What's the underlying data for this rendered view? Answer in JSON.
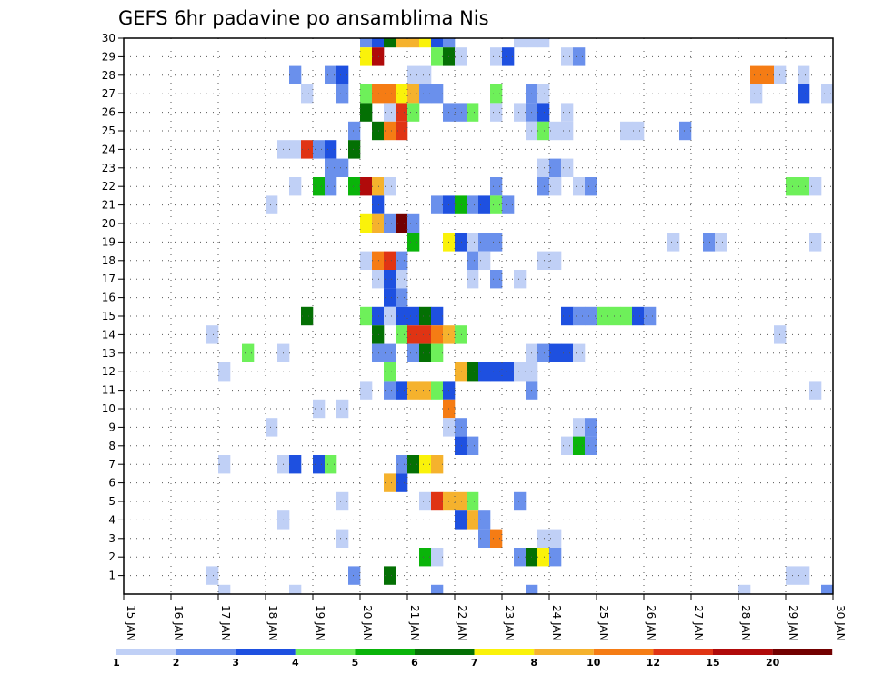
{
  "chart_data": {
    "type": "heatmap",
    "title": "GEFS 6hr padavine po ansamblima Nis",
    "xlabel": "",
    "ylabel": "",
    "x_unit": "days since 15 JAN 00z",
    "xlim": [
      0,
      15
    ],
    "ylim": [
      0,
      30
    ],
    "x_tick_labels": [
      "15 JAN",
      "16 JAN",
      "17 JAN",
      "18 JAN",
      "19 JAN",
      "20 JAN",
      "21 JAN",
      "22 JAN",
      "23 JAN",
      "24 JAN",
      "25 JAN",
      "26 JAN",
      "27 JAN",
      "28 JAN",
      "29 JAN",
      "30 JAN"
    ],
    "y_tick_labels": [
      "1",
      "2",
      "3",
      "4",
      "5",
      "6",
      "7",
      "8",
      "9",
      "10",
      "11",
      "12",
      "13",
      "14",
      "15",
      "16",
      "17",
      "18",
      "19",
      "20",
      "21",
      "22",
      "23",
      "24",
      "25",
      "26",
      "27",
      "28",
      "29",
      "30"
    ],
    "grid": true,
    "legend_position": "bottom",
    "levels": [
      1,
      2,
      3,
      4,
      5,
      6,
      7,
      8,
      10,
      12,
      15,
      20
    ],
    "colors": [
      "#c0d0f6",
      "#6a90ec",
      "#1e50e0",
      "#6ef05a",
      "#0ab40a",
      "#047004",
      "#faf20a",
      "#f5b22d",
      "#f57c14",
      "#e03414",
      "#b00a0a",
      "#720000"
    ],
    "members": [
      {
        "member": 30,
        "cells": [
          [
            5,
            2
          ],
          [
            5.25,
            3
          ],
          [
            5.5,
            6
          ],
          [
            5.75,
            8
          ],
          [
            6,
            8
          ],
          [
            6.25,
            7
          ],
          [
            6.5,
            3
          ],
          [
            6.75,
            2
          ],
          [
            8.25,
            1
          ],
          [
            8.5,
            1
          ],
          [
            8.75,
            1
          ]
        ]
      },
      {
        "member": 29,
        "cells": [
          [
            5,
            7
          ],
          [
            5.25,
            11
          ],
          [
            6.5,
            4
          ],
          [
            6.75,
            6
          ],
          [
            7,
            1
          ],
          [
            7.75,
            1
          ],
          [
            8,
            3
          ],
          [
            9.25,
            1
          ],
          [
            9.5,
            2
          ]
        ]
      },
      {
        "member": 28,
        "cells": [
          [
            3.5,
            2
          ],
          [
            4.25,
            2
          ],
          [
            4.5,
            3
          ],
          [
            6,
            1
          ],
          [
            6.25,
            1
          ],
          [
            13.25,
            9
          ],
          [
            13.5,
            9
          ],
          [
            13.75,
            1
          ],
          [
            14.25,
            1
          ]
        ]
      },
      {
        "member": 27,
        "cells": [
          [
            3.75,
            1
          ],
          [
            4.5,
            2
          ],
          [
            5,
            4
          ],
          [
            5.25,
            9
          ],
          [
            5.5,
            9
          ],
          [
            5.75,
            7
          ],
          [
            6,
            8
          ],
          [
            6.25,
            2
          ],
          [
            6.5,
            2
          ],
          [
            7.75,
            4
          ],
          [
            8.5,
            2
          ],
          [
            8.75,
            1
          ],
          [
            13.25,
            1
          ],
          [
            14.25,
            3
          ],
          [
            14.75,
            1
          ]
        ]
      },
      {
        "member": 26,
        "cells": [
          [
            5,
            6
          ],
          [
            5.5,
            1
          ],
          [
            5.75,
            10
          ],
          [
            6,
            4
          ],
          [
            6.75,
            2
          ],
          [
            7,
            2
          ],
          [
            7.25,
            4
          ],
          [
            7.75,
            1
          ],
          [
            8.25,
            1
          ],
          [
            8.5,
            2
          ],
          [
            8.75,
            3
          ],
          [
            9.25,
            1
          ]
        ]
      },
      {
        "member": 25,
        "cells": [
          [
            4.75,
            2
          ],
          [
            5.25,
            6
          ],
          [
            5.5,
            9
          ],
          [
            5.75,
            10
          ],
          [
            8.5,
            1
          ],
          [
            8.75,
            4
          ],
          [
            9,
            1
          ],
          [
            9.25,
            1
          ],
          [
            10.5,
            1
          ],
          [
            10.75,
            1
          ],
          [
            11.75,
            2
          ]
        ]
      },
      {
        "member": 24,
        "cells": [
          [
            3.25,
            1
          ],
          [
            3.5,
            1
          ],
          [
            3.75,
            10
          ],
          [
            4,
            2
          ],
          [
            4.25,
            3
          ],
          [
            4.75,
            6
          ]
        ]
      },
      {
        "member": 23,
        "cells": [
          [
            4.25,
            2
          ],
          [
            4.5,
            2
          ],
          [
            8.75,
            1
          ],
          [
            9,
            2
          ],
          [
            9.25,
            1
          ]
        ]
      },
      {
        "member": 22,
        "cells": [
          [
            3.5,
            1
          ],
          [
            4,
            5
          ],
          [
            4.25,
            2
          ],
          [
            4.75,
            5
          ],
          [
            5,
            11
          ],
          [
            5.25,
            8
          ],
          [
            5.5,
            1
          ],
          [
            7.75,
            2
          ],
          [
            8.75,
            2
          ],
          [
            9,
            1
          ],
          [
            9.5,
            1
          ],
          [
            9.75,
            2
          ],
          [
            14,
            4
          ],
          [
            14.25,
            4
          ],
          [
            14.5,
            1
          ]
        ]
      },
      {
        "member": 21,
        "cells": [
          [
            3,
            1
          ],
          [
            5.25,
            3
          ],
          [
            6.5,
            2
          ],
          [
            6.75,
            3
          ],
          [
            7,
            5
          ],
          [
            7.25,
            2
          ],
          [
            7.5,
            3
          ],
          [
            7.75,
            4
          ],
          [
            8,
            2
          ]
        ]
      },
      {
        "member": 20,
        "cells": [
          [
            5,
            7
          ],
          [
            5.25,
            8
          ],
          [
            5.5,
            2
          ],
          [
            5.75,
            12
          ],
          [
            6,
            2
          ]
        ]
      },
      {
        "member": 19,
        "cells": [
          [
            6,
            5
          ],
          [
            6.75,
            7
          ],
          [
            7,
            3
          ],
          [
            7.25,
            1
          ],
          [
            7.5,
            2
          ],
          [
            7.75,
            2
          ],
          [
            11.5,
            1
          ],
          [
            12.25,
            2
          ],
          [
            12.5,
            1
          ],
          [
            14.5,
            1
          ]
        ]
      },
      {
        "member": 18,
        "cells": [
          [
            5,
            1
          ],
          [
            5.25,
            9
          ],
          [
            5.5,
            10
          ],
          [
            5.75,
            2
          ],
          [
            7.25,
            2
          ],
          [
            7.5,
            1
          ],
          [
            8.75,
            1
          ],
          [
            9,
            1
          ]
        ]
      },
      {
        "member": 17,
        "cells": [
          [
            5.25,
            1
          ],
          [
            5.5,
            3
          ],
          [
            5.75,
            1
          ],
          [
            7.25,
            1
          ],
          [
            7.75,
            2
          ],
          [
            8.25,
            1
          ]
        ]
      },
      {
        "member": 16,
        "cells": [
          [
            5.5,
            3
          ],
          [
            5.75,
            2
          ]
        ]
      },
      {
        "member": 15,
        "cells": [
          [
            3.75,
            6
          ],
          [
            5,
            4
          ],
          [
            5.25,
            3
          ],
          [
            5.5,
            1
          ],
          [
            5.75,
            3
          ],
          [
            6,
            3
          ],
          [
            6.25,
            6
          ],
          [
            6.5,
            3
          ],
          [
            9.25,
            3
          ],
          [
            9.5,
            2
          ],
          [
            9.75,
            2
          ],
          [
            10,
            4
          ],
          [
            10.25,
            4
          ],
          [
            10.5,
            4
          ],
          [
            10.75,
            3
          ],
          [
            11,
            2
          ]
        ]
      },
      {
        "member": 14,
        "cells": [
          [
            1.75,
            1
          ],
          [
            5.25,
            6
          ],
          [
            5.75,
            4
          ],
          [
            6,
            10
          ],
          [
            6.25,
            10
          ],
          [
            6.5,
            9
          ],
          [
            6.75,
            8
          ],
          [
            7,
            4
          ],
          [
            13.75,
            1
          ]
        ]
      },
      {
        "member": 13,
        "cells": [
          [
            2.5,
            4
          ],
          [
            3.25,
            1
          ],
          [
            5.25,
            2
          ],
          [
            5.5,
            2
          ],
          [
            6,
            2
          ],
          [
            6.25,
            6
          ],
          [
            6.5,
            4
          ],
          [
            8.5,
            1
          ],
          [
            8.75,
            2
          ],
          [
            9,
            3
          ],
          [
            9.25,
            3
          ],
          [
            9.5,
            1
          ]
        ]
      },
      {
        "member": 12,
        "cells": [
          [
            2,
            1
          ],
          [
            5.5,
            4
          ],
          [
            7,
            8
          ],
          [
            7.25,
            6
          ],
          [
            7.5,
            3
          ],
          [
            7.75,
            3
          ],
          [
            8,
            3
          ],
          [
            8.25,
            1
          ],
          [
            8.5,
            1
          ]
        ]
      },
      {
        "member": 11,
        "cells": [
          [
            5,
            1
          ],
          [
            5.5,
            2
          ],
          [
            5.75,
            3
          ],
          [
            6,
            8
          ],
          [
            6.25,
            8
          ],
          [
            6.5,
            4
          ],
          [
            6.75,
            3
          ],
          [
            8.5,
            2
          ],
          [
            14.5,
            1
          ]
        ]
      },
      {
        "member": 10,
        "cells": [
          [
            4,
            1
          ],
          [
            4.5,
            1
          ],
          [
            6.75,
            9
          ]
        ]
      },
      {
        "member": 9,
        "cells": [
          [
            3,
            1
          ],
          [
            6.75,
            1
          ],
          [
            7,
            2
          ],
          [
            9.5,
            1
          ],
          [
            9.75,
            2
          ]
        ]
      },
      {
        "member": 8,
        "cells": [
          [
            7,
            3
          ],
          [
            7.25,
            2
          ],
          [
            9.25,
            1
          ],
          [
            9.5,
            5
          ],
          [
            9.75,
            2
          ]
        ]
      },
      {
        "member": 7,
        "cells": [
          [
            2,
            1
          ],
          [
            3.25,
            1
          ],
          [
            3.5,
            3
          ],
          [
            4,
            3
          ],
          [
            4.25,
            4
          ],
          [
            5.75,
            2
          ],
          [
            6,
            6
          ],
          [
            6.25,
            7
          ],
          [
            6.5,
            8
          ]
        ]
      },
      {
        "member": 6,
        "cells": [
          [
            5.5,
            8
          ],
          [
            5.75,
            3
          ]
        ]
      },
      {
        "member": 5,
        "cells": [
          [
            4.5,
            1
          ],
          [
            6.25,
            1
          ],
          [
            6.5,
            10
          ],
          [
            6.75,
            8
          ],
          [
            7,
            8
          ],
          [
            7.25,
            4
          ],
          [
            8.25,
            2
          ]
        ]
      },
      {
        "member": 4,
        "cells": [
          [
            3.25,
            1
          ],
          [
            7,
            3
          ],
          [
            7.25,
            8
          ],
          [
            7.5,
            2
          ]
        ]
      },
      {
        "member": 3,
        "cells": [
          [
            4.5,
            1
          ],
          [
            7.5,
            2
          ],
          [
            7.75,
            9
          ],
          [
            8.75,
            1
          ],
          [
            9,
            1
          ]
        ]
      },
      {
        "member": 2,
        "cells": [
          [
            6.25,
            5
          ],
          [
            6.5,
            1
          ],
          [
            8.25,
            2
          ],
          [
            8.5,
            6
          ],
          [
            8.75,
            7
          ],
          [
            9,
            2
          ]
        ]
      },
      {
        "member": 1,
        "cells": [
          [
            1.75,
            1
          ],
          [
            4.75,
            2
          ],
          [
            5.5,
            6
          ],
          [
            14,
            1
          ],
          [
            14.25,
            1
          ]
        ]
      },
      {
        "member": 0,
        "cells": [
          [
            2,
            1
          ],
          [
            3.5,
            1
          ],
          [
            6.5,
            2
          ],
          [
            8.5,
            2
          ],
          [
            13,
            1
          ],
          [
            14.75,
            2
          ]
        ]
      }
    ]
  }
}
